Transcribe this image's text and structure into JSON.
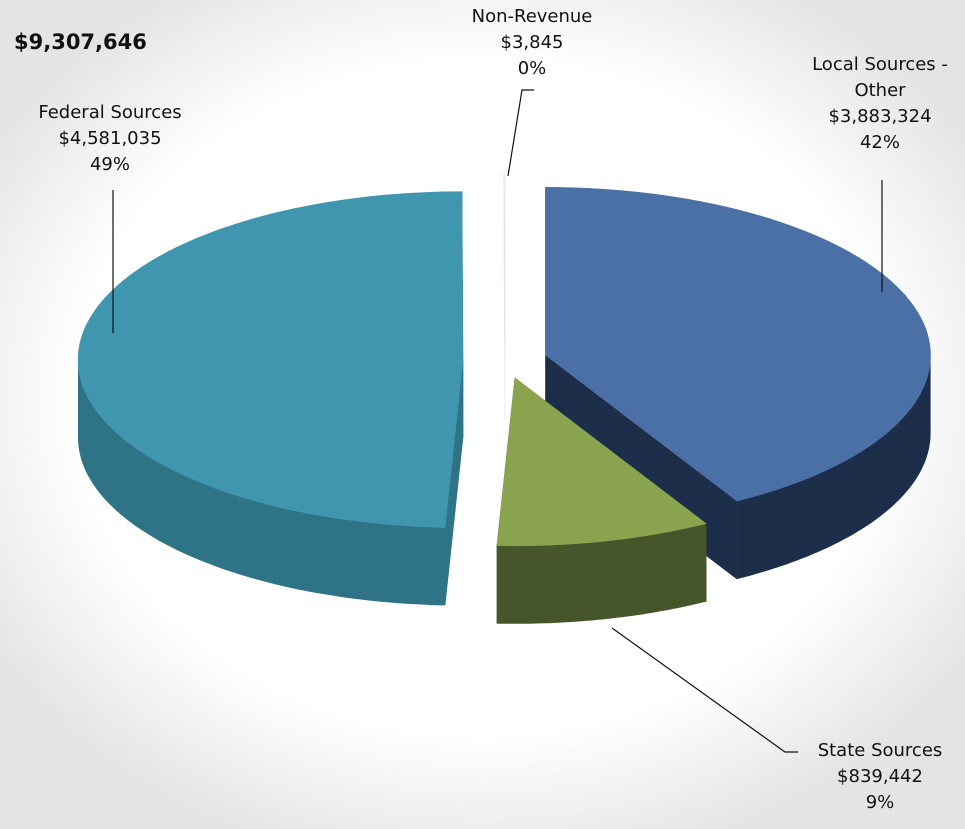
{
  "chart_data": {
    "type": "pie3d",
    "title": "$9,307,646",
    "categories": [
      "Local Sources - Other",
      "State Sources",
      "Federal Sources",
      "Non-Revenue"
    ],
    "values": [
      3883324,
      839442,
      4581035,
      3845
    ],
    "value_labels": [
      "$3,883,324",
      "$839,442",
      "$4,581,035",
      "$3,845"
    ],
    "percent_labels": [
      "42%",
      "9%",
      "49%",
      "0%"
    ],
    "colors": [
      "#4a70a6",
      "#8aa34e",
      "#4096ae",
      "#ffffff"
    ],
    "side_colors": [
      "#1c2e4a",
      "#46562a",
      "#2f7386",
      "#e8e8e8"
    ]
  }
}
